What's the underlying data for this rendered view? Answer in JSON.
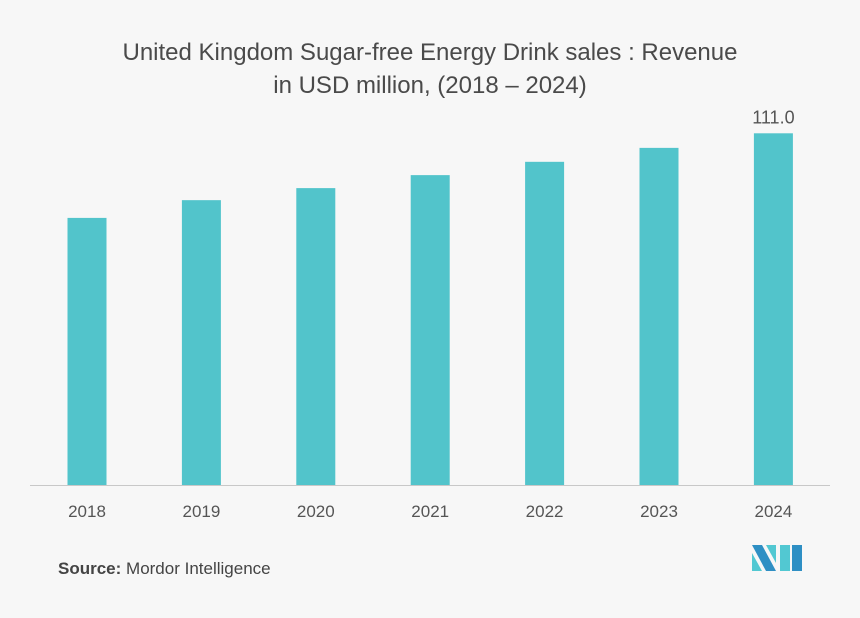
{
  "chart_data": {
    "type": "bar",
    "title_lines": [
      "United Kingdom Sugar-free Energy Drink sales : Revenue",
      "in USD million, (2018 – 2024)"
    ],
    "categories": [
      "2018",
      "2019",
      "2020",
      "2021",
      "2022",
      "2023",
      "2024"
    ],
    "values": [
      84.3,
      89.9,
      93.7,
      97.8,
      102.0,
      106.4,
      111.0
    ],
    "data_labels": [
      null,
      null,
      null,
      null,
      null,
      null,
      "111.0"
    ],
    "xlabel": "",
    "ylabel": "",
    "ylim": [
      0,
      111.0
    ],
    "grid": false,
    "bar_color": "#52c4cb"
  },
  "source": {
    "label": "Source:",
    "text": "Mordor Intelligence"
  },
  "logo": {
    "colors": [
      "#2e8fc4",
      "#52c8d2"
    ]
  }
}
